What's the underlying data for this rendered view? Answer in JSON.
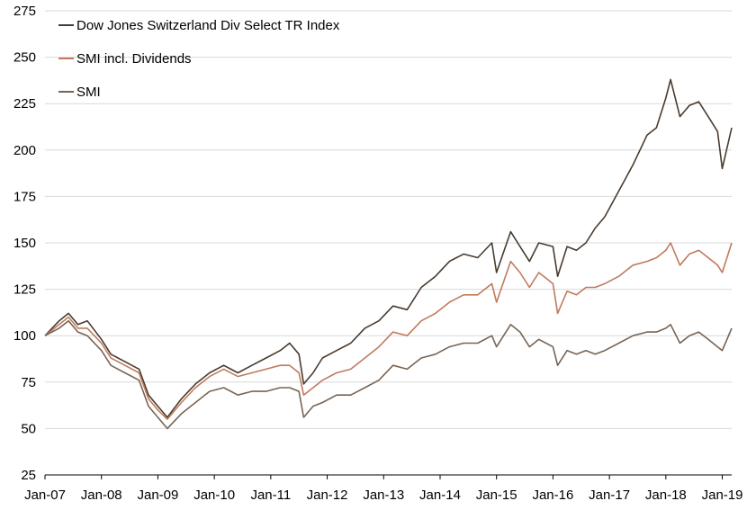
{
  "chart_data": {
    "type": "line",
    "title": "",
    "xlabel": "",
    "ylabel": "",
    "ylim": [
      25,
      275
    ],
    "yticks": [
      25,
      50,
      75,
      100,
      125,
      150,
      175,
      200,
      225,
      250,
      275
    ],
    "xlim": [
      "2007-01",
      "2019-03"
    ],
    "xticks": [
      {
        "label": "Jan-07",
        "date": "2007-01"
      },
      {
        "label": "Jan-08",
        "date": "2008-01"
      },
      {
        "label": "Jan-09",
        "date": "2009-01"
      },
      {
        "label": "Jan-10",
        "date": "2010-01"
      },
      {
        "label": "Jan-11",
        "date": "2011-01"
      },
      {
        "label": "Jan-12",
        "date": "2012-01"
      },
      {
        "label": "Jan-13",
        "date": "2013-01"
      },
      {
        "label": "Jan-14",
        "date": "2014-01"
      },
      {
        "label": "Jan-15",
        "date": "2015-01"
      },
      {
        "label": "Jan-16",
        "date": "2016-01"
      },
      {
        "label": "Jan-17",
        "date": "2017-01"
      },
      {
        "label": "Jan-18",
        "date": "2018-01"
      },
      {
        "label": "Jan-19",
        "date": "2019-01"
      }
    ],
    "grid": "horizontal",
    "legend_position": "top-left",
    "series": [
      {
        "name": "Dow Jones Switzerland Div Select TR Index",
        "color": "#4a3b2e",
        "x": [
          "2007-01",
          "2007-04",
          "2007-06",
          "2007-08",
          "2007-10",
          "2008-01",
          "2008-03",
          "2008-06",
          "2008-09",
          "2008-11",
          "2009-01",
          "2009-03",
          "2009-06",
          "2009-09",
          "2009-12",
          "2010-03",
          "2010-06",
          "2010-09",
          "2010-12",
          "2011-03",
          "2011-05",
          "2011-07",
          "2011-08",
          "2011-10",
          "2011-12",
          "2012-03",
          "2012-06",
          "2012-09",
          "2012-12",
          "2013-03",
          "2013-06",
          "2013-09",
          "2013-12",
          "2014-03",
          "2014-06",
          "2014-09",
          "2014-12",
          "2015-01",
          "2015-04",
          "2015-06",
          "2015-08",
          "2015-10",
          "2016-01",
          "2016-02",
          "2016-04",
          "2016-06",
          "2016-08",
          "2016-10",
          "2016-12",
          "2017-03",
          "2017-06",
          "2017-09",
          "2017-11",
          "2018-01",
          "2018-02",
          "2018-04",
          "2018-06",
          "2018-08",
          "2018-10",
          "2018-12",
          "2019-01",
          "2019-03"
        ],
        "values": [
          100,
          108,
          112,
          106,
          108,
          98,
          90,
          86,
          82,
          68,
          62,
          56,
          66,
          74,
          80,
          84,
          80,
          84,
          88,
          92,
          96,
          90,
          74,
          80,
          88,
          92,
          96,
          104,
          108,
          116,
          114,
          126,
          132,
          140,
          144,
          142,
          150,
          134,
          156,
          148,
          140,
          150,
          148,
          132,
          148,
          146,
          150,
          158,
          164,
          178,
          192,
          208,
          212,
          228,
          238,
          218,
          224,
          226,
          218,
          210,
          190,
          212
        ]
      },
      {
        "name": "SMI incl. Dividends",
        "color": "#c07a5d",
        "x": [
          "2007-01",
          "2007-04",
          "2007-06",
          "2007-08",
          "2007-10",
          "2008-01",
          "2008-03",
          "2008-06",
          "2008-09",
          "2008-11",
          "2009-01",
          "2009-03",
          "2009-06",
          "2009-09",
          "2009-12",
          "2010-03",
          "2010-06",
          "2010-09",
          "2010-12",
          "2011-03",
          "2011-05",
          "2011-07",
          "2011-08",
          "2011-10",
          "2011-12",
          "2012-03",
          "2012-06",
          "2012-09",
          "2012-12",
          "2013-03",
          "2013-06",
          "2013-09",
          "2013-12",
          "2014-03",
          "2014-06",
          "2014-09",
          "2014-12",
          "2015-01",
          "2015-04",
          "2015-06",
          "2015-08",
          "2015-10",
          "2016-01",
          "2016-02",
          "2016-04",
          "2016-06",
          "2016-08",
          "2016-10",
          "2016-12",
          "2017-03",
          "2017-06",
          "2017-09",
          "2017-11",
          "2018-01",
          "2018-02",
          "2018-04",
          "2018-06",
          "2018-08",
          "2018-10",
          "2018-12",
          "2019-01",
          "2019-03"
        ],
        "values": [
          100,
          106,
          110,
          104,
          104,
          96,
          88,
          84,
          80,
          66,
          60,
          55,
          64,
          72,
          78,
          82,
          78,
          80,
          82,
          84,
          84,
          80,
          68,
          72,
          76,
          80,
          82,
          88,
          94,
          102,
          100,
          108,
          112,
          118,
          122,
          122,
          128,
          118,
          140,
          134,
          126,
          134,
          128,
          112,
          124,
          122,
          126,
          126,
          128,
          132,
          138,
          140,
          142,
          146,
          150,
          138,
          144,
          146,
          142,
          138,
          134,
          150
        ]
      },
      {
        "name": "SMI",
        "color": "#786454",
        "x": [
          "2007-01",
          "2007-04",
          "2007-06",
          "2007-08",
          "2007-10",
          "2008-01",
          "2008-03",
          "2008-06",
          "2008-09",
          "2008-11",
          "2009-01",
          "2009-03",
          "2009-06",
          "2009-09",
          "2009-12",
          "2010-03",
          "2010-06",
          "2010-09",
          "2010-12",
          "2011-03",
          "2011-05",
          "2011-07",
          "2011-08",
          "2011-10",
          "2011-12",
          "2012-03",
          "2012-06",
          "2012-09",
          "2012-12",
          "2013-03",
          "2013-06",
          "2013-09",
          "2013-12",
          "2014-03",
          "2014-06",
          "2014-09",
          "2014-12",
          "2015-01",
          "2015-04",
          "2015-06",
          "2015-08",
          "2015-10",
          "2016-01",
          "2016-02",
          "2016-04",
          "2016-06",
          "2016-08",
          "2016-10",
          "2016-12",
          "2017-03",
          "2017-06",
          "2017-09",
          "2017-11",
          "2018-01",
          "2018-02",
          "2018-04",
          "2018-06",
          "2018-08",
          "2018-10",
          "2018-12",
          "2019-01",
          "2019-03"
        ],
        "values": [
          100,
          104,
          108,
          102,
          100,
          92,
          84,
          80,
          76,
          62,
          56,
          50,
          58,
          64,
          70,
          72,
          68,
          70,
          70,
          72,
          72,
          70,
          56,
          62,
          64,
          68,
          68,
          72,
          76,
          84,
          82,
          88,
          90,
          94,
          96,
          96,
          100,
          94,
          106,
          102,
          94,
          98,
          94,
          84,
          92,
          90,
          92,
          90,
          92,
          96,
          100,
          102,
          102,
          104,
          106,
          96,
          100,
          102,
          98,
          94,
          92,
          104
        ]
      }
    ]
  }
}
